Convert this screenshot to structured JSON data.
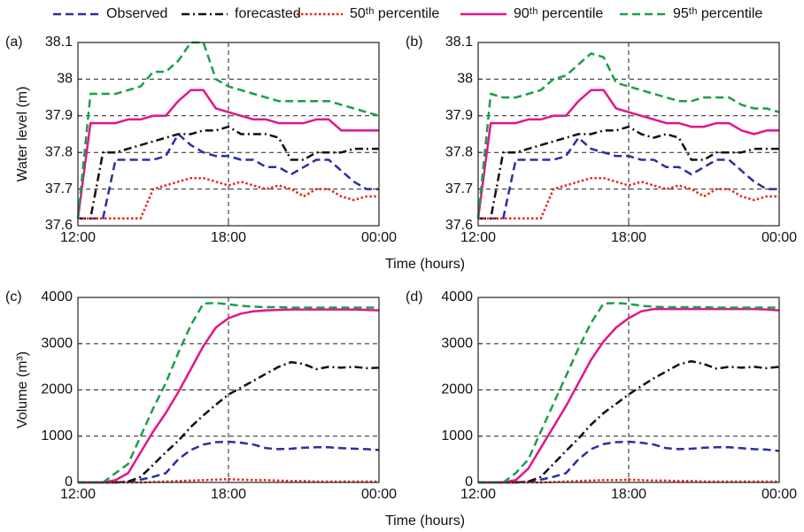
{
  "legend": [
    {
      "name": "Observed",
      "color": "#2b2f9e",
      "dash": "dashed"
    },
    {
      "name": "forecasted",
      "color": "#111111",
      "dash": "dashdot"
    },
    {
      "name": "50ᵗʰ percentile",
      "color": "#e8261c",
      "dash": "dotted"
    },
    {
      "name": "90ᵗʰ percentile",
      "color": "#e0168c",
      "dash": "solid"
    },
    {
      "name": "95ᵗʰ percentile",
      "color": "#1a9e4a",
      "dash": "dashed"
    }
  ],
  "chart_data": [
    {
      "type": "line",
      "panel_label": "(a)",
      "ylabel": "Water level (m)",
      "xlabel": "Time (hours)",
      "x": [
        12,
        12.5,
        13,
        13.5,
        14,
        14.5,
        15,
        15.5,
        16,
        16.5,
        17,
        17.5,
        18,
        18.5,
        19,
        19.5,
        20,
        20.5,
        21,
        21.5,
        22,
        22.5,
        23,
        23.5,
        24
      ],
      "xlim": [
        12,
        24
      ],
      "xticks": [
        {
          "value": 12,
          "label": "12:00"
        },
        {
          "value": 18,
          "label": "18:00"
        },
        {
          "value": 24,
          "label": "00:00"
        }
      ],
      "ylim": [
        37.6,
        38.1
      ],
      "yticks": [
        37.6,
        37.7,
        37.8,
        37.9,
        38,
        38.1
      ],
      "grid": true,
      "series": [
        {
          "values": [
            37.62,
            37.62,
            37.62,
            37.78,
            37.78,
            37.78,
            37.78,
            37.79,
            37.85,
            37.82,
            37.8,
            37.79,
            37.79,
            37.78,
            37.78,
            37.76,
            37.76,
            37.74,
            37.76,
            37.78,
            37.78,
            37.75,
            37.72,
            37.7,
            37.7
          ]
        },
        {
          "values": [
            37.62,
            37.62,
            37.8,
            37.8,
            37.81,
            37.82,
            37.83,
            37.84,
            37.85,
            37.85,
            37.86,
            37.86,
            37.87,
            37.85,
            37.85,
            37.85,
            37.84,
            37.78,
            37.78,
            37.8,
            37.8,
            37.8,
            37.81,
            37.81,
            37.81
          ]
        },
        {
          "values": [
            37.62,
            37.62,
            37.62,
            37.62,
            37.62,
            37.62,
            37.7,
            37.71,
            37.72,
            37.73,
            37.73,
            37.72,
            37.71,
            37.72,
            37.71,
            37.7,
            37.71,
            37.7,
            37.68,
            37.7,
            37.7,
            37.68,
            37.67,
            37.68,
            37.68
          ]
        },
        {
          "values": [
            37.62,
            37.88,
            37.88,
            37.88,
            37.89,
            37.89,
            37.9,
            37.9,
            37.94,
            37.97,
            37.97,
            37.92,
            37.91,
            37.9,
            37.89,
            37.89,
            37.88,
            37.88,
            37.88,
            37.89,
            37.89,
            37.86,
            37.86,
            37.86,
            37.86
          ]
        },
        {
          "values": [
            37.62,
            37.96,
            37.96,
            37.96,
            37.97,
            37.98,
            38.02,
            38.02,
            38.05,
            38.1,
            38.1,
            38.0,
            37.98,
            37.97,
            37.96,
            37.95,
            37.94,
            37.94,
            37.94,
            37.94,
            37.94,
            37.93,
            37.92,
            37.91,
            37.9
          ]
        }
      ]
    },
    {
      "type": "line",
      "panel_label": "(b)",
      "x": [
        12,
        12.5,
        13,
        13.5,
        14,
        14.5,
        15,
        15.5,
        16,
        16.5,
        17,
        17.5,
        18,
        18.5,
        19,
        19.5,
        20,
        20.5,
        21,
        21.5,
        22,
        22.5,
        23,
        23.5,
        24
      ],
      "xlim": [
        12,
        24
      ],
      "xticks": [
        {
          "value": 12,
          "label": "12:00"
        },
        {
          "value": 18,
          "label": "18:00"
        },
        {
          "value": 24,
          "label": "00:00"
        }
      ],
      "ylim": [
        37.6,
        38.1
      ],
      "yticks": [
        37.6,
        37.7,
        37.8,
        37.9,
        38,
        38.1
      ],
      "grid": true,
      "series": [
        {
          "values": [
            37.62,
            37.62,
            37.62,
            37.78,
            37.78,
            37.78,
            37.78,
            37.79,
            37.84,
            37.81,
            37.8,
            37.79,
            37.79,
            37.78,
            37.78,
            37.76,
            37.76,
            37.74,
            37.76,
            37.78,
            37.78,
            37.75,
            37.72,
            37.7,
            37.7
          ]
        },
        {
          "values": [
            37.62,
            37.62,
            37.8,
            37.8,
            37.81,
            37.82,
            37.83,
            37.84,
            37.85,
            37.85,
            37.86,
            37.86,
            37.87,
            37.85,
            37.84,
            37.85,
            37.84,
            37.78,
            37.78,
            37.8,
            37.8,
            37.8,
            37.81,
            37.81,
            37.81
          ]
        },
        {
          "values": [
            37.62,
            37.62,
            37.62,
            37.62,
            37.62,
            37.62,
            37.7,
            37.71,
            37.72,
            37.73,
            37.73,
            37.72,
            37.71,
            37.72,
            37.71,
            37.7,
            37.71,
            37.7,
            37.68,
            37.7,
            37.7,
            37.68,
            37.67,
            37.68,
            37.68
          ]
        },
        {
          "values": [
            37.62,
            37.88,
            37.88,
            37.88,
            37.89,
            37.89,
            37.9,
            37.9,
            37.94,
            37.97,
            37.97,
            37.92,
            37.91,
            37.9,
            37.89,
            37.88,
            37.88,
            37.87,
            37.87,
            37.88,
            37.88,
            37.86,
            37.85,
            37.86,
            37.86
          ]
        },
        {
          "values": [
            37.62,
            37.96,
            37.95,
            37.95,
            37.96,
            37.97,
            38.0,
            38.01,
            38.04,
            38.07,
            38.06,
            37.99,
            37.98,
            37.97,
            37.96,
            37.95,
            37.94,
            37.94,
            37.95,
            37.95,
            37.95,
            37.93,
            37.92,
            37.92,
            37.91
          ]
        }
      ]
    },
    {
      "type": "line",
      "panel_label": "(c)",
      "ylabel": "Volume (m³)",
      "xlabel": "Time (hours)",
      "x": [
        12,
        12.5,
        13,
        13.5,
        14,
        14.5,
        15,
        15.5,
        16,
        16.5,
        17,
        17.5,
        18,
        18.5,
        19,
        19.5,
        20,
        20.5,
        21,
        21.5,
        22,
        22.5,
        23,
        23.5,
        24
      ],
      "xlim": [
        12,
        24
      ],
      "xticks": [
        {
          "value": 12,
          "label": "12:00"
        },
        {
          "value": 18,
          "label": "18:00"
        },
        {
          "value": 24,
          "label": "00:00"
        }
      ],
      "ylim": [
        0,
        4000
      ],
      "yticks": [
        0,
        1000,
        2000,
        3000,
        4000
      ],
      "grid": true,
      "series": [
        {
          "values": [
            0,
            0,
            0,
            0,
            20,
            60,
            120,
            200,
            500,
            700,
            820,
            870,
            880,
            860,
            820,
            740,
            720,
            730,
            750,
            760,
            760,
            740,
            730,
            720,
            700
          ]
        },
        {
          "values": [
            0,
            0,
            0,
            0,
            20,
            120,
            380,
            650,
            900,
            1200,
            1450,
            1680,
            1900,
            2050,
            2200,
            2350,
            2500,
            2600,
            2560,
            2450,
            2500,
            2480,
            2500,
            2470,
            2480
          ]
        },
        {
          "values": [
            0,
            0,
            0,
            0,
            0,
            0,
            10,
            20,
            30,
            40,
            50,
            60,
            70,
            60,
            50,
            50,
            40,
            30,
            30,
            20,
            20,
            20,
            20,
            20,
            20
          ]
        },
        {
          "values": [
            0,
            0,
            0,
            50,
            200,
            650,
            1100,
            1500,
            1950,
            2450,
            2950,
            3350,
            3550,
            3650,
            3700,
            3720,
            3730,
            3740,
            3740,
            3740,
            3740,
            3740,
            3740,
            3730,
            3720
          ]
        },
        {
          "values": [
            0,
            0,
            0,
            200,
            400,
            1000,
            1600,
            2150,
            2800,
            3400,
            3870,
            3880,
            3850,
            3820,
            3800,
            3790,
            3790,
            3780,
            3780,
            3780,
            3780,
            3780,
            3780,
            3780,
            3780
          ]
        }
      ]
    },
    {
      "type": "line",
      "panel_label": "(d)",
      "x": [
        12,
        12.5,
        13,
        13.5,
        14,
        14.5,
        15,
        15.5,
        16,
        16.5,
        17,
        17.5,
        18,
        18.5,
        19,
        19.5,
        20,
        20.5,
        21,
        21.5,
        22,
        22.5,
        23,
        23.5,
        24
      ],
      "xlim": [
        12,
        24
      ],
      "xticks": [
        {
          "value": 12,
          "label": "12:00"
        },
        {
          "value": 18,
          "label": "18:00"
        },
        {
          "value": 24,
          "label": "00:00"
        }
      ],
      "ylim": [
        0,
        4000
      ],
      "yticks": [
        0,
        1000,
        2000,
        3000,
        4000
      ],
      "grid": true,
      "series": [
        {
          "values": [
            0,
            0,
            0,
            0,
            20,
            60,
            120,
            200,
            500,
            720,
            830,
            870,
            880,
            860,
            820,
            740,
            720,
            730,
            750,
            760,
            760,
            740,
            720,
            710,
            680
          ]
        },
        {
          "values": [
            0,
            0,
            0,
            0,
            20,
            120,
            400,
            680,
            950,
            1250,
            1500,
            1700,
            1900,
            2080,
            2250,
            2400,
            2550,
            2620,
            2560,
            2460,
            2500,
            2480,
            2500,
            2470,
            2500
          ]
        },
        {
          "values": [
            0,
            0,
            0,
            0,
            0,
            0,
            10,
            20,
            30,
            40,
            50,
            50,
            60,
            50,
            40,
            40,
            30,
            30,
            20,
            20,
            20,
            20,
            20,
            20,
            20
          ]
        },
        {
          "values": [
            0,
            0,
            0,
            50,
            300,
            750,
            1200,
            1650,
            2150,
            2650,
            3050,
            3350,
            3550,
            3700,
            3750,
            3750,
            3750,
            3750,
            3750,
            3750,
            3750,
            3750,
            3750,
            3740,
            3720
          ]
        },
        {
          "values": [
            0,
            0,
            0,
            200,
            500,
            1100,
            1700,
            2300,
            2900,
            3450,
            3870,
            3880,
            3860,
            3820,
            3800,
            3790,
            3790,
            3790,
            3790,
            3780,
            3780,
            3780,
            3780,
            3780,
            3780
          ]
        }
      ]
    }
  ]
}
